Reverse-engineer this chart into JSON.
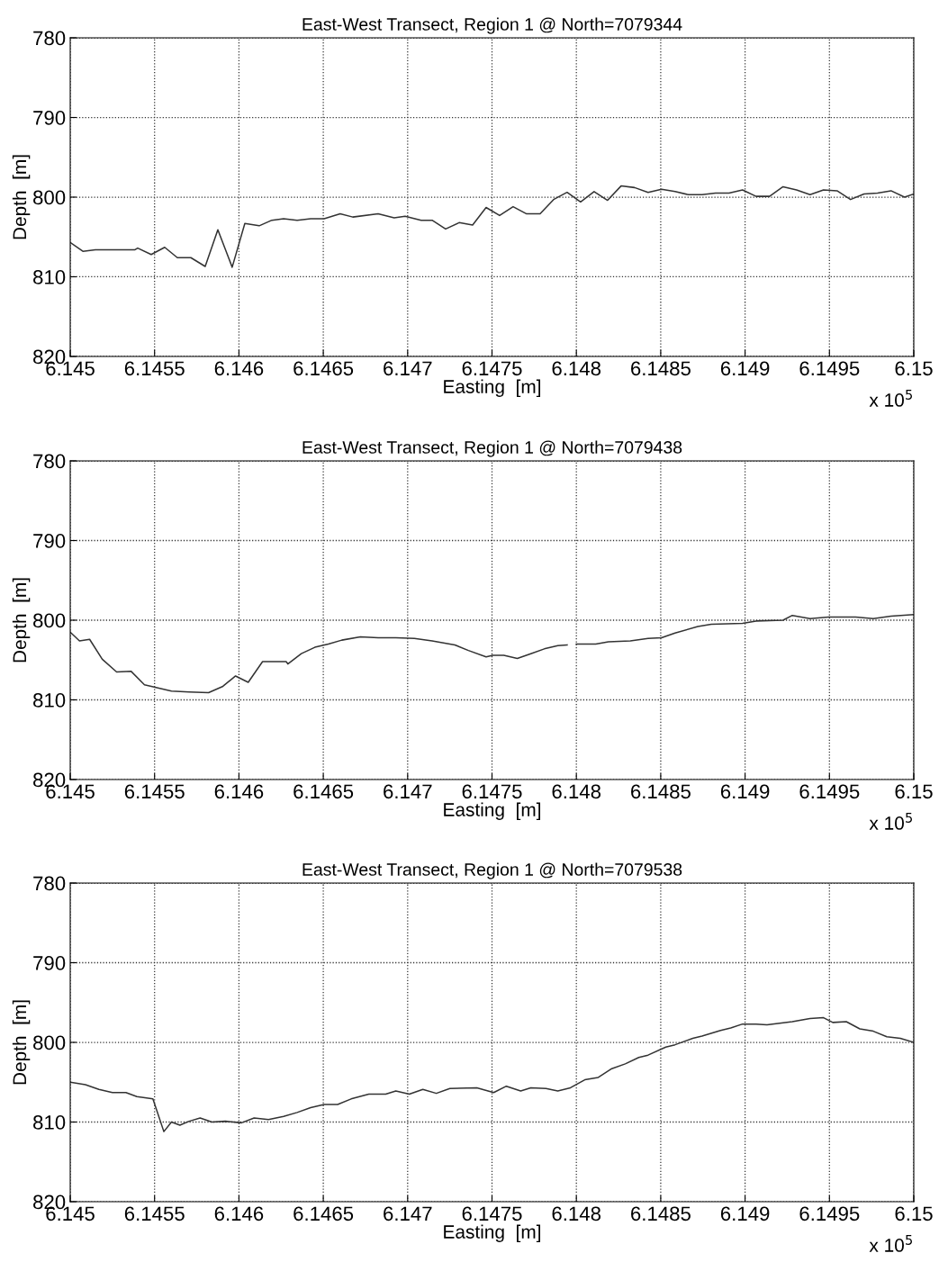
{
  "chart_data": [
    {
      "type": "line",
      "title": "East-West Transect, Region 1 @ North=7079344",
      "xlabel": "Easting  [m]",
      "ylabel": "Depth  [m]",
      "xlim": [
        6.145,
        6.15
      ],
      "ylim": [
        820,
        780
      ],
      "xticks": [
        6.145,
        6.1455,
        6.146,
        6.1465,
        6.147,
        6.1475,
        6.148,
        6.1485,
        6.149,
        6.1495,
        6.15
      ],
      "yticks": [
        780,
        790,
        800,
        810,
        820
      ],
      "grid": true,
      "line_style": "solid",
      "marker": "none",
      "annotations": [
        "x 10$^{5}$"
      ],
      "series": [
        {
          "color": "#333333",
          "x": [
            6.145,
            6.145075,
            6.145149,
            6.145384,
            6.1454,
            6.14548,
            6.14556,
            6.145635,
            6.145715,
            6.1458,
            6.145875,
            6.14596,
            6.146035,
            6.14612,
            6.146195,
            6.146265,
            6.146345,
            6.146425,
            6.146505,
            6.1466,
            6.146675,
            6.146825,
            6.14692,
            6.146985,
            6.14708,
            6.147145,
            6.147225,
            6.147305,
            6.147385,
            6.147465,
            6.147545,
            6.147625,
            6.147705,
            6.147785,
            6.147865,
            6.147945,
            6.148025,
            6.148105,
            6.148185,
            6.148265,
            6.148345,
            6.148425,
            6.148505,
            6.148585,
            6.148665,
            6.148745,
            6.148825,
            6.148905,
            6.148985,
            6.149065,
            6.149145,
            6.149225,
            6.149305,
            6.149385,
            6.149465,
            6.149545,
            6.149625,
            6.149705,
            6.149785,
            6.149865,
            6.149945,
            6.15
          ],
          "values": [
            805.7,
            806.8,
            806.6,
            806.6,
            806.4,
            807.2,
            806.3,
            807.6,
            807.6,
            808.7,
            804.1,
            808.8,
            803.3,
            803.6,
            802.9,
            802.7,
            802.9,
            802.7,
            802.7,
            802.1,
            802.5,
            802.1,
            802.6,
            802.4,
            802.9,
            802.9,
            804.0,
            803.2,
            803.5,
            801.3,
            802.3,
            801.2,
            802.1,
            802.1,
            800.3,
            799.4,
            800.6,
            799.3,
            800.4,
            798.6,
            798.8,
            799.4,
            799.0,
            799.3,
            799.7,
            799.7,
            799.5,
            799.5,
            799.1,
            799.9,
            799.9,
            798.7,
            799.1,
            799.7,
            799.1,
            799.2,
            800.3,
            799.6,
            799.5,
            799.2,
            800.0,
            799.6
          ]
        }
      ]
    },
    {
      "type": "line",
      "title": "East-West Transect, Region 1 @ North=7079438",
      "xlabel": "Easting  [m]",
      "ylabel": "Depth  [m]",
      "xlim": [
        6.145,
        6.15
      ],
      "ylim": [
        820,
        780
      ],
      "xticks": [
        6.145,
        6.1455,
        6.146,
        6.1465,
        6.147,
        6.1475,
        6.148,
        6.1485,
        6.149,
        6.1495,
        6.15
      ],
      "yticks": [
        780,
        790,
        800,
        810,
        820
      ],
      "grid": true,
      "line_style": "solid",
      "marker": "none",
      "annotations": [
        "x 10$^{5}$"
      ],
      "series": [
        {
          "color": "#333333",
          "x": [
            6.145,
            6.145055,
            6.145115,
            6.14519,
            6.145275,
            6.14536,
            6.14544,
            6.14552,
            6.1456,
            6.145705,
            6.14582,
            6.145905,
            6.14598,
            6.146055,
            6.14614,
            6.14628,
            6.14629,
            6.14637,
            6.14645,
            6.14653,
            6.14661,
            6.14672,
            6.146825,
            6.14693,
            6.14704,
            6.147145,
            6.14728,
            6.14736,
            6.147465,
            6.147505,
            6.14757,
            6.14765,
            6.14773,
            6.14781,
            6.14789,
            6.147945,
            6.14797,
            6.148,
            6.148115,
            6.14819,
            6.14832,
            6.148425,
            6.148505,
            6.148585,
            6.14872,
            6.1488,
            6.148985,
            6.149065,
            6.149225,
            6.14928,
            6.149385,
            6.149495,
            6.149655,
            6.14976,
            6.149865,
            6.15
          ],
          "values": [
            801.5,
            802.6,
            802.4,
            804.9,
            806.5,
            806.4,
            808.1,
            808.5,
            808.9,
            809.0,
            809.1,
            808.3,
            807.0,
            807.8,
            805.2,
            805.2,
            805.5,
            804.2,
            803.4,
            803.0,
            802.5,
            802.1,
            802.2,
            802.2,
            802.3,
            802.6,
            803.1,
            803.8,
            804.6,
            804.4,
            804.4,
            804.8,
            804.2,
            803.6,
            803.2,
            803.1,
            null,
            803.0,
            803.0,
            802.7,
            802.6,
            802.3,
            802.2,
            801.6,
            800.8,
            800.5,
            800.4,
            800.1,
            800.0,
            799.4,
            799.8,
            799.6,
            799.6,
            799.8,
            799.5,
            799.3
          ]
        }
      ]
    },
    {
      "type": "line",
      "title": "East-West Transect, Region 1 @ North=7079538",
      "xlabel": "Easting  [m]",
      "ylabel": "Depth  [m]",
      "xlim": [
        6.145,
        6.15
      ],
      "ylim": [
        820,
        780
      ],
      "xticks": [
        6.145,
        6.1455,
        6.146,
        6.1465,
        6.147,
        6.1475,
        6.148,
        6.1485,
        6.149,
        6.1495,
        6.15
      ],
      "yticks": [
        780,
        790,
        800,
        810,
        820
      ],
      "grid": true,
      "line_style": "solid",
      "marker": "none",
      "annotations": [
        "x 10$^{5}$"
      ],
      "series": [
        {
          "color": "#333333",
          "x": [
            6.145,
            6.14509,
            6.14517,
            6.14525,
            6.14533,
            6.145395,
            6.14549,
            6.145555,
            6.1456,
            6.14565,
            6.145705,
            6.14577,
            6.14584,
            6.14592,
            6.146015,
            6.14609,
            6.146175,
            6.146265,
            6.146345,
            6.146425,
            6.146505,
            6.146585,
            6.146665,
            6.14677,
            6.14687,
            6.14693,
            6.14701,
            6.14709,
            6.14717,
            6.14725,
            6.14741,
            6.14751,
            6.147585,
            6.14767,
            6.14773,
            6.14782,
            6.14789,
            6.147965,
            6.14805,
            6.14813,
            6.14821,
            6.14829,
            6.14837,
            6.148425,
            6.14853,
            6.148585,
            6.14869,
            6.148745,
            6.148855,
            6.148915,
            6.148985,
            6.149065,
            6.14913,
            6.14928,
            6.149385,
            6.149465,
            6.14952,
            6.1496,
            6.14968,
            6.14976,
            6.14984,
            6.14992,
            6.15
          ],
          "values": [
            805.0,
            805.3,
            805.9,
            806.3,
            806.3,
            806.8,
            807.1,
            811.2,
            810.0,
            810.4,
            809.9,
            809.5,
            810.0,
            809.9,
            810.1,
            809.5,
            809.7,
            809.3,
            808.8,
            808.2,
            807.8,
            807.8,
            807.1,
            806.5,
            806.5,
            806.1,
            806.5,
            805.9,
            806.4,
            805.8,
            805.7,
            806.3,
            805.5,
            806.1,
            805.7,
            805.8,
            806.1,
            805.7,
            804.7,
            804.4,
            803.3,
            802.7,
            801.9,
            801.6,
            800.6,
            800.3,
            799.5,
            799.2,
            798.5,
            798.2,
            797.7,
            797.7,
            797.8,
            797.4,
            797.0,
            796.9,
            797.5,
            797.4,
            798.3,
            798.6,
            799.3,
            799.5,
            800.0
          ]
        }
      ]
    }
  ]
}
